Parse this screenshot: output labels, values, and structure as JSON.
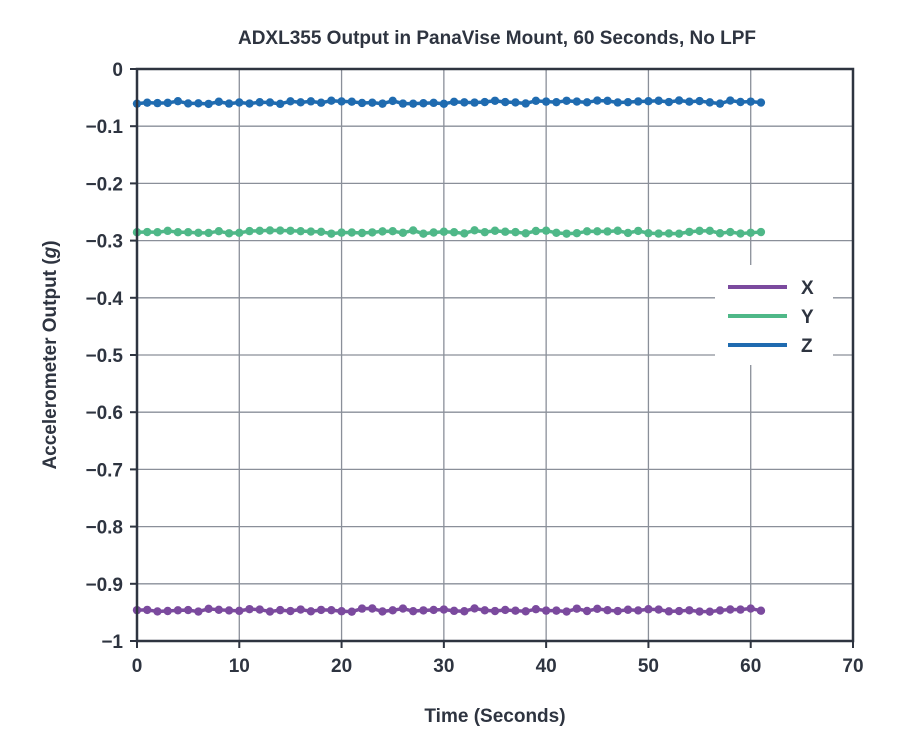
{
  "chart_data": {
    "type": "line",
    "title": "ADXL355 Output in PanaVise Mount, 60 Seconds, No LPF",
    "xlabel": "Time (Seconds)",
    "ylabel_main": "Accelerometer Output (",
    "ylabel_unit": "g",
    "ylabel_close": ")",
    "xlim": [
      0,
      70
    ],
    "ylim": [
      -1,
      0
    ],
    "x_ticks": [
      0,
      10,
      20,
      30,
      40,
      50,
      60,
      70
    ],
    "x_tick_labels": [
      "0",
      "10",
      "20",
      "30",
      "40",
      "50",
      "60",
      "70"
    ],
    "y_ticks": [
      0,
      -0.1,
      -0.2,
      -0.3,
      -0.4,
      -0.5,
      -0.6,
      -0.7,
      -0.8,
      -0.9,
      -1
    ],
    "y_tick_labels": [
      "0",
      "−0.1",
      "−0.2",
      "−0.3",
      "−0.4",
      "−0.5",
      "−0.6",
      "−0.7",
      "−0.8",
      "−0.9",
      "−1"
    ],
    "grid": true,
    "legend_position": "right",
    "x_start": 0,
    "x_end": 61,
    "sample_step": 1,
    "series": [
      {
        "name": "X",
        "color": "#7b4a9e",
        "mean": -0.946,
        "jitter": 0.003
      },
      {
        "name": "Y",
        "color": "#4fb888",
        "mean": -0.285,
        "jitter": 0.003
      },
      {
        "name": "Z",
        "color": "#1f6bb0",
        "mean": -0.058,
        "jitter": 0.003
      }
    ]
  }
}
